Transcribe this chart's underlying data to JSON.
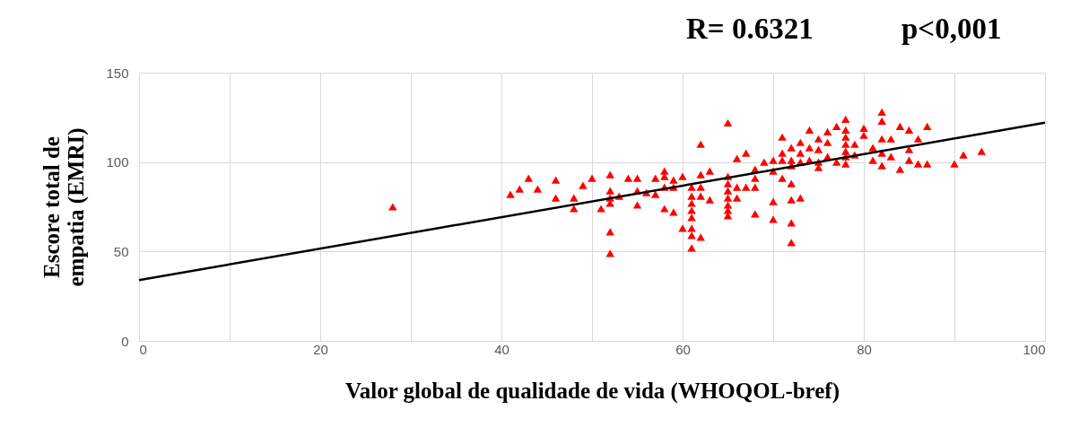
{
  "chart_data": {
    "type": "scatter",
    "xlabel": "Valor global de qualidade de vida (WHOQOL-bref)",
    "ylabel": "Escore total de\nempatia (EMRI)",
    "annotations": [
      "R= 0.6321",
      "p<0,001"
    ],
    "xlim": [
      0,
      100
    ],
    "ylim": [
      0,
      150
    ],
    "xticks": [
      0,
      {
        "value": 10,
        "label": null
      },
      20,
      {
        "value": 30,
        "label": null
      },
      40,
      {
        "value": 50,
        "label": null
      },
      60,
      {
        "value": 70,
        "label": null
      },
      80,
      {
        "value": 90,
        "label": null
      },
      100
    ],
    "yticks": [
      0,
      50,
      100,
      150
    ],
    "grid": true,
    "marker": "triangle",
    "series": [
      {
        "color": "#ff0000",
        "x": [
          28,
          41,
          42,
          43,
          44,
          46,
          46,
          48,
          48,
          49,
          50,
          51,
          52,
          52,
          52,
          52,
          52,
          52,
          53,
          54,
          55,
          55,
          55,
          56,
          57,
          57,
          58,
          58,
          58,
          58,
          59,
          59,
          59,
          60,
          60,
          61,
          61,
          61,
          61,
          61,
          61,
          61,
          61,
          62,
          62,
          62,
          62,
          62,
          63,
          63,
          65,
          65,
          65,
          65,
          65,
          65,
          65,
          65,
          66,
          66,
          66,
          67,
          67,
          68,
          68,
          68,
          68,
          69,
          70,
          70,
          70,
          70,
          71,
          71,
          71,
          71,
          72,
          72,
          72,
          72,
          72,
          72,
          72,
          73,
          73,
          73,
          73,
          74,
          74,
          74,
          75,
          75,
          75,
          75,
          76,
          76,
          76,
          77,
          77,
          78,
          78,
          78,
          78,
          78,
          78,
          78,
          79,
          79,
          80,
          80,
          81,
          81,
          82,
          82,
          82,
          82,
          82,
          83,
          83,
          84,
          84,
          85,
          85,
          85,
          86,
          86,
          87,
          87,
          90,
          91,
          93
        ],
        "values": [
          75,
          82,
          85,
          91,
          85,
          90,
          80,
          80,
          74,
          87,
          91,
          74,
          93,
          84,
          80,
          77,
          61,
          49,
          81,
          91,
          91,
          84,
          76,
          83,
          91,
          82,
          92,
          95,
          86,
          74,
          90,
          86,
          72,
          63,
          92,
          63,
          86,
          81,
          77,
          73,
          69,
          59,
          52,
          110,
          93,
          86,
          81,
          58,
          95,
          79,
          122,
          92,
          88,
          84,
          80,
          76,
          73,
          70,
          86,
          80,
          102,
          105,
          86,
          96,
          91,
          86,
          71,
          100,
          101,
          95,
          78,
          68,
          114,
          105,
          101,
          91,
          108,
          101,
          98,
          88,
          79,
          66,
          55,
          111,
          105,
          100,
          80,
          118,
          108,
          101,
          113,
          107,
          100,
          97,
          117,
          111,
          103,
          120,
          100,
          124,
          118,
          114,
          110,
          106,
          103,
          99,
          110,
          104,
          119,
          115,
          108,
          101,
          128,
          123,
          113,
          105,
          98,
          113,
          103,
          120,
          96,
          118,
          107,
          101,
          113,
          99,
          120,
          99,
          99,
          104,
          106
        ]
      },
      {
        "type": "line",
        "marker": "none",
        "color": "#000000",
        "x": [
          0,
          100
        ],
        "values": [
          34,
          122
        ]
      }
    ]
  }
}
